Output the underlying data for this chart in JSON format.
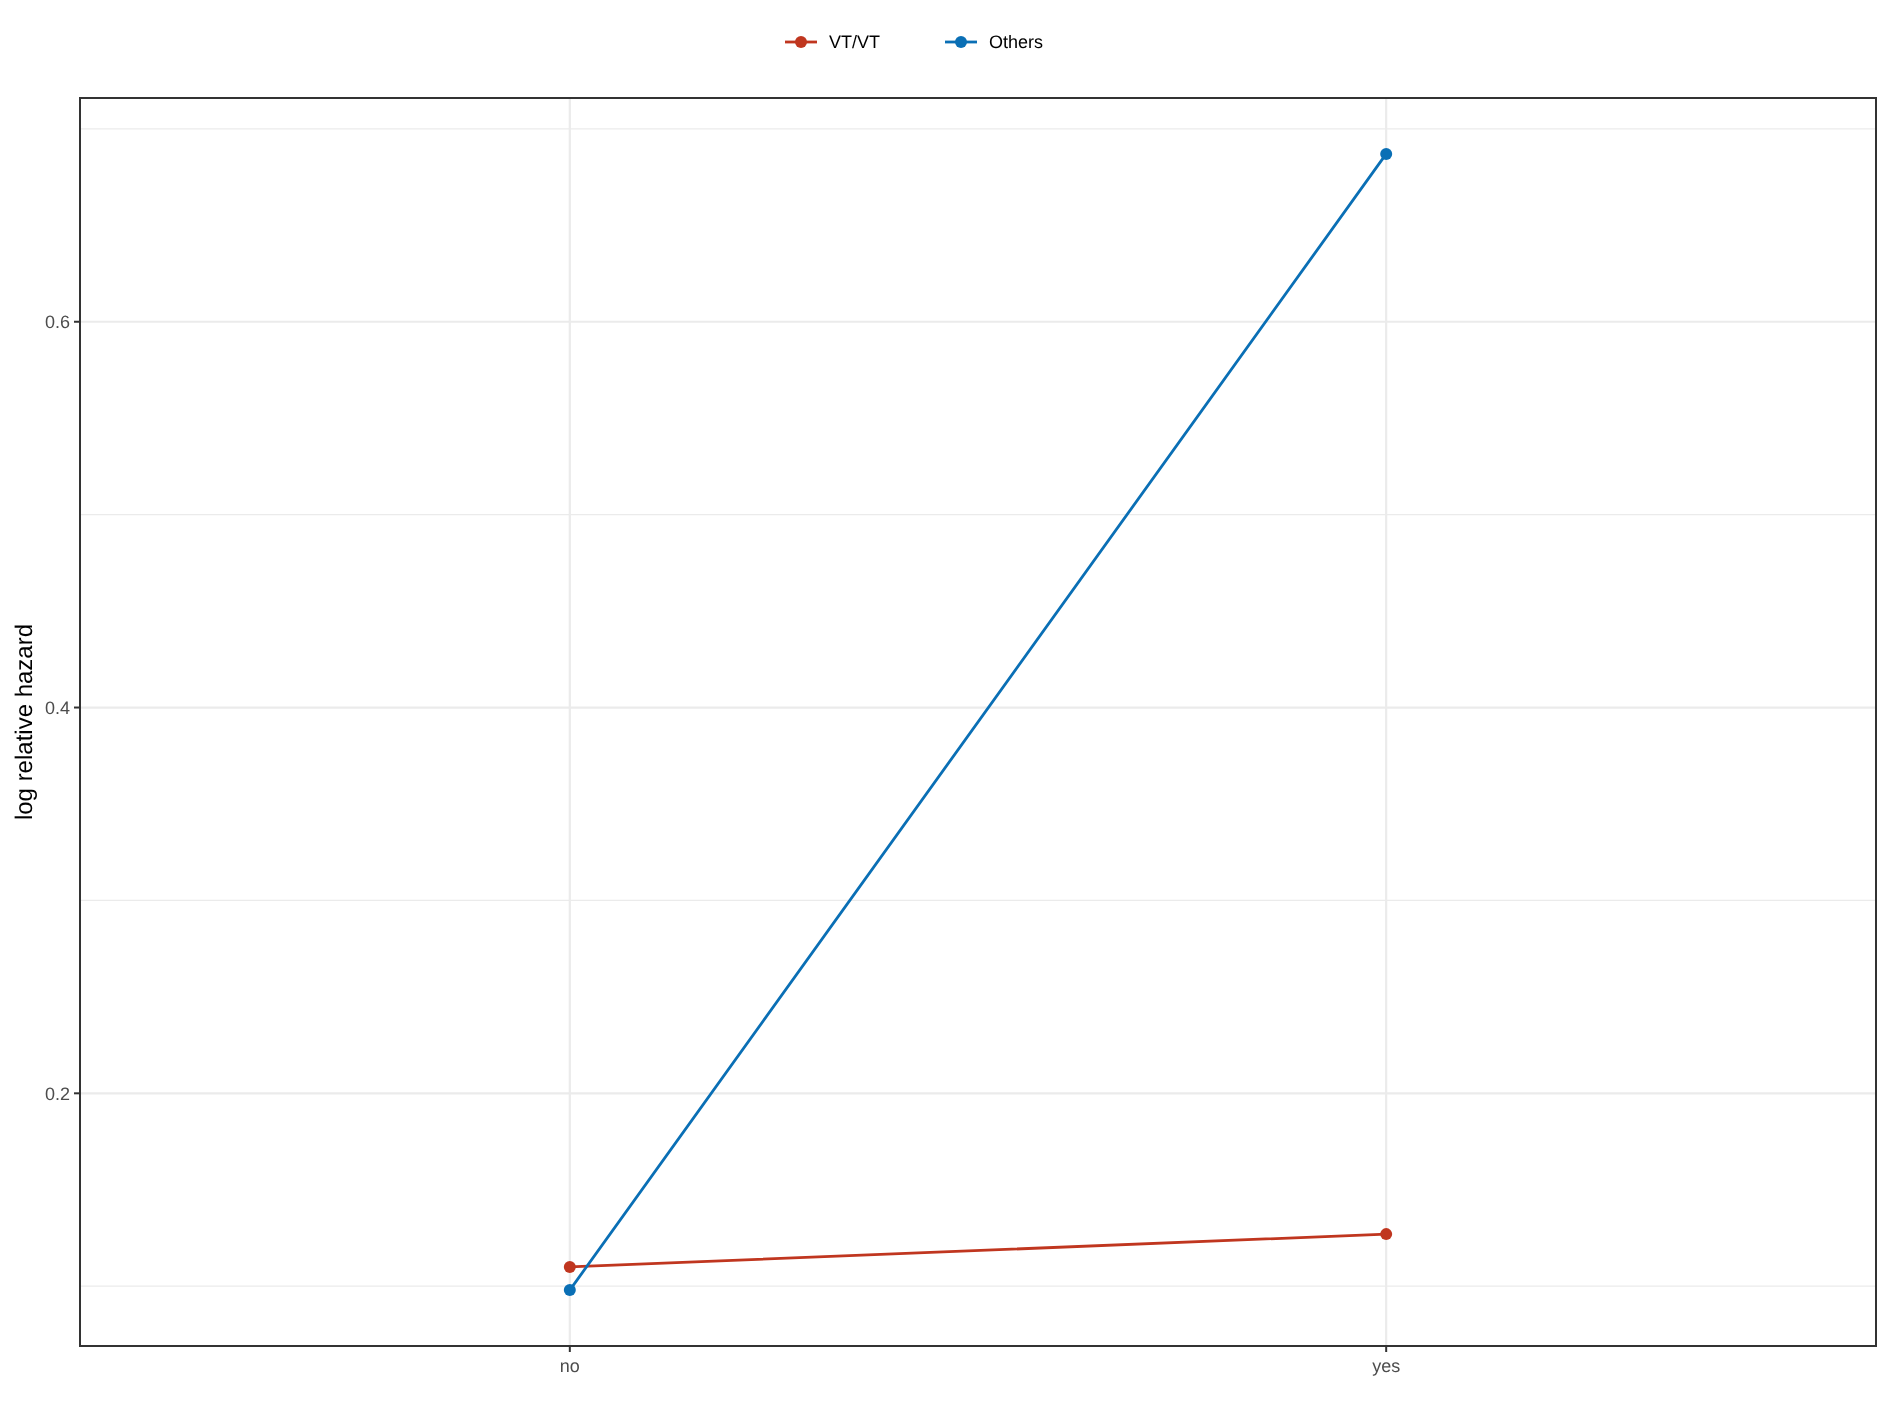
{
  "chart_data": {
    "type": "line",
    "ylabel": "log relative hazard",
    "categories": [
      "no",
      "yes"
    ],
    "series": [
      {
        "name": "VT/VT",
        "color": "#c0361f",
        "values": [
          0.11,
          0.127
        ]
      },
      {
        "name": "Others",
        "color": "#0a6fb5",
        "values": [
          0.098,
          0.687
        ]
      }
    ],
    "ylim": [
      0.069,
      0.716
    ],
    "yticks": [
      {
        "value": 0.1,
        "label": null
      },
      {
        "value": 0.2,
        "label": "0.2"
      },
      {
        "value": 0.3,
        "label": null
      },
      {
        "value": 0.4,
        "label": "0.4"
      },
      {
        "value": 0.5,
        "label": null
      },
      {
        "value": 0.6,
        "label": "0.6"
      },
      {
        "value": 0.7,
        "label": null
      }
    ],
    "grid": true,
    "legend": "top",
    "marker": "circle",
    "line_style": "solid"
  }
}
